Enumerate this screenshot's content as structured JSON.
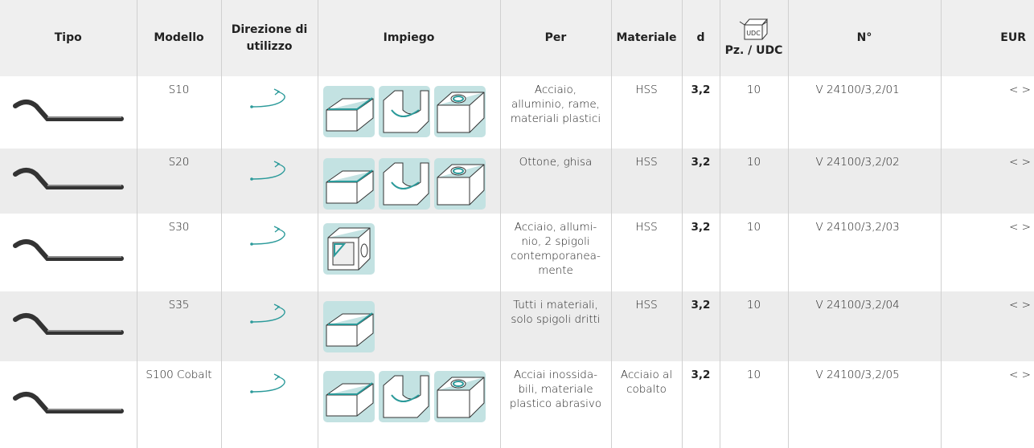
{
  "header": {
    "tipo": "Tipo",
    "modello": "Modello",
    "direzione": "Direzione di\nutilizzo",
    "impiego": "Impiego",
    "per": "Per",
    "materiale": "Materiale",
    "d": "d",
    "pz_icon": "UDC",
    "pz": "Pz. / UDC",
    "numero": "N°",
    "eur": "EUR"
  },
  "rows": [
    {
      "modello": "S10",
      "per": "Acciaio,\nalluminio, rame,\nmateriali plastici",
      "materiale": "HSS",
      "d": "3,2",
      "pz": "10",
      "numero": "V 24100/3,2/01",
      "eur": "< >"
    },
    {
      "modello": "S20",
      "per": "Ottone, ghisa",
      "materiale": "HSS",
      "d": "3,2",
      "pz": "10",
      "numero": "V 24100/3,2/02",
      "eur": "< >"
    },
    {
      "modello": "S30",
      "per": "Acciaio, allumi-\nnio, 2 spigoli\ncontemporanea-\nmente",
      "materiale": "HSS",
      "d": "3,2",
      "pz": "10",
      "numero": "V 24100/3,2/03",
      "eur": "< >"
    },
    {
      "modello": "S35",
      "per": "Tutti i materiali,\nsolo spigoli dritti",
      "materiale": "HSS",
      "d": "3,2",
      "pz": "10",
      "numero": "V 24100/3,2/04",
      "eur": "< >"
    },
    {
      "modello": "S100 Cobalt",
      "per": "Acciai inossida-\nbili, materiale\nplastico abrasivo",
      "materiale": "Acciaio al\ncobalto",
      "d": "3,2",
      "pz": "10",
      "numero": "V 24100/3,2/05",
      "eur": "< >"
    }
  ]
}
